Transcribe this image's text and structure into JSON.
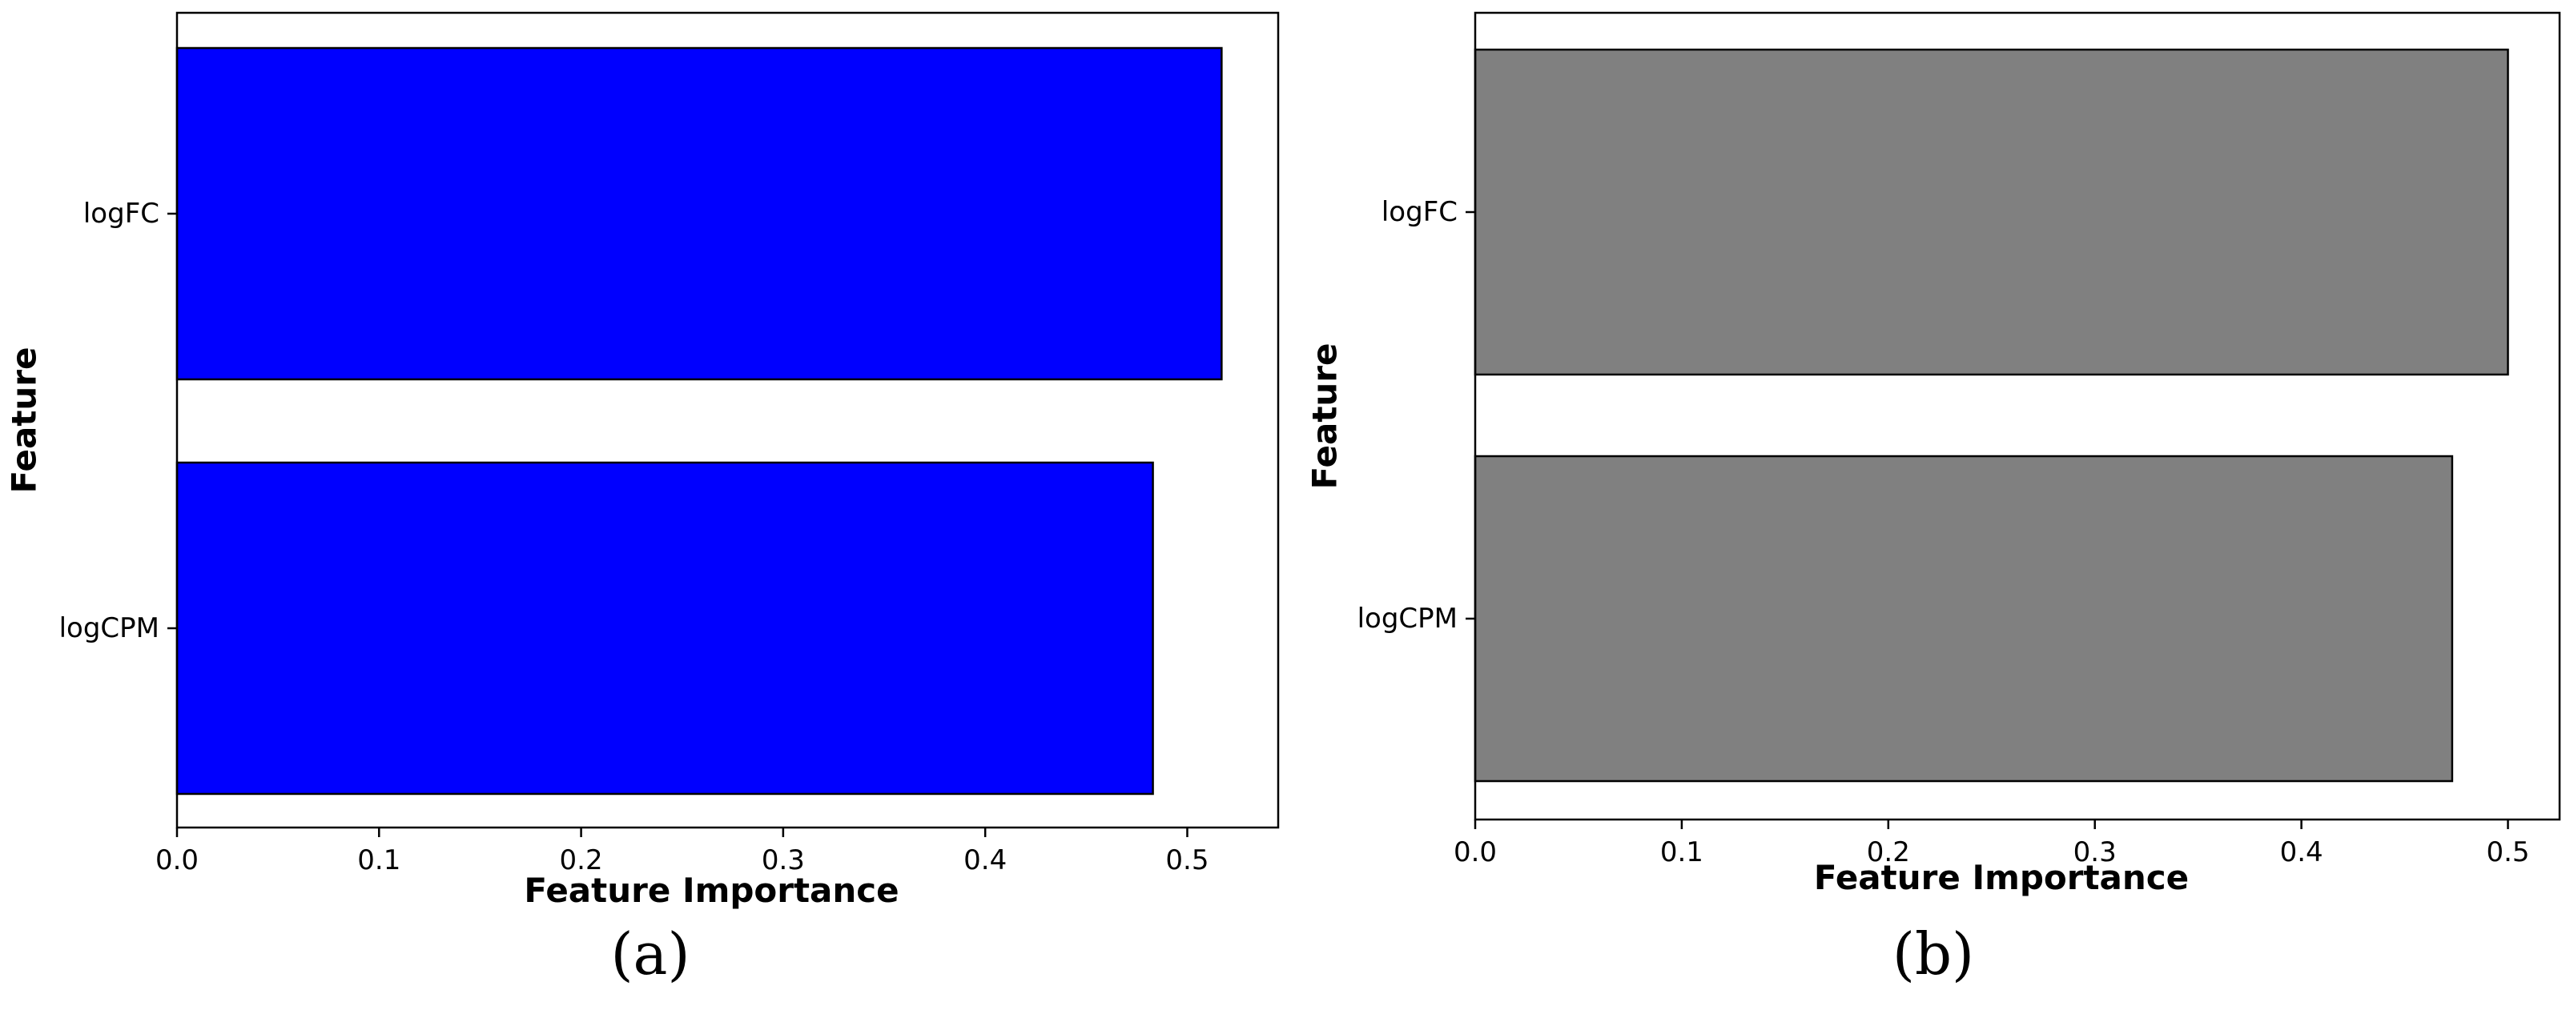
{
  "chart_data": [
    {
      "type": "bar",
      "orientation": "horizontal",
      "panel_label": "(a)",
      "categories": [
        "logFC",
        "logCPM"
      ],
      "values": [
        0.517,
        0.483
      ],
      "xlabel": "Feature Importance",
      "ylabel": "Feature",
      "xlim": [
        0,
        0.545
      ],
      "xticks": [
        0.0,
        0.1,
        0.2,
        0.3,
        0.4,
        0.5
      ],
      "xtick_labels": [
        "0.0",
        "0.1",
        "0.2",
        "0.3",
        "0.4",
        "0.5"
      ],
      "grid": false,
      "legend": "none",
      "bar_color": "#0000ff",
      "edge_color": "#000000"
    },
    {
      "type": "bar",
      "orientation": "horizontal",
      "panel_label": "(b)",
      "categories": [
        "logFC",
        "logCPM"
      ],
      "values": [
        0.5,
        0.473
      ],
      "xlabel": "Feature Importance",
      "ylabel": "Feature",
      "xlim": [
        0,
        0.525
      ],
      "xticks": [
        0.0,
        0.1,
        0.2,
        0.3,
        0.4,
        0.5
      ],
      "xtick_labels": [
        "0.0",
        "0.1",
        "0.2",
        "0.3",
        "0.4",
        "0.5"
      ],
      "grid": false,
      "legend": "none",
      "bar_color": "#808080",
      "edge_color": "#000000"
    }
  ]
}
